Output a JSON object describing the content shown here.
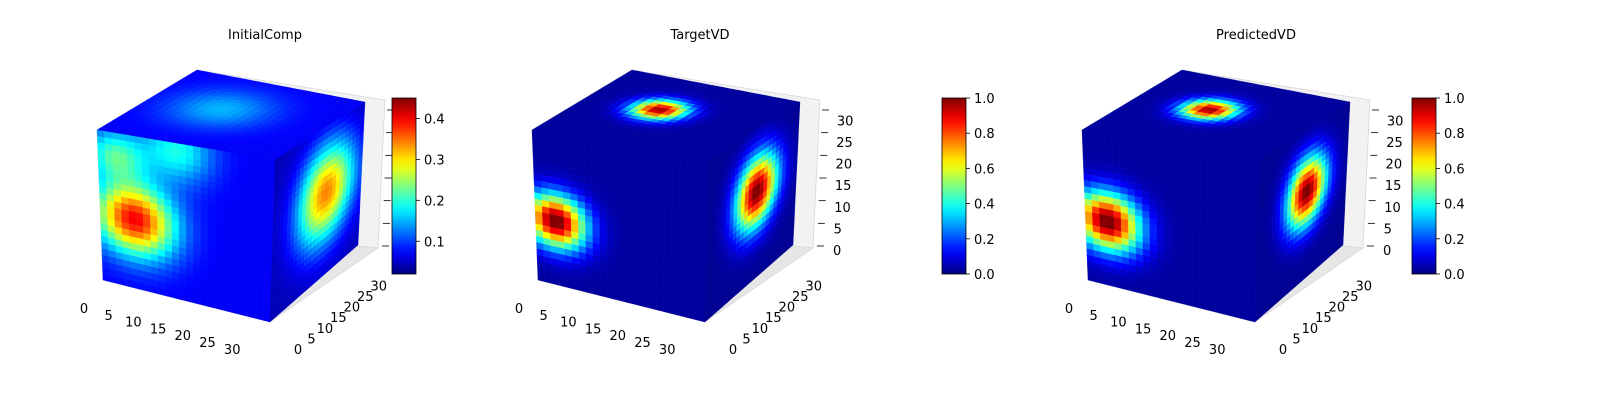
{
  "chart_data": [
    {
      "type": "heatmap",
      "subtype": "3d-voxel",
      "title": "InitialComp",
      "colormap": "jet",
      "grid_size": [
        32,
        32,
        32
      ],
      "axis_ticks": {
        "x": [
          "0",
          "5",
          "10",
          "15",
          "20",
          "25",
          "30"
        ],
        "y": [
          "0",
          "5",
          "10",
          "15",
          "20",
          "25",
          "30"
        ],
        "z": []
      },
      "colorbar": {
        "ticks": [
          "0.1",
          "0.2",
          "0.3",
          "0.4"
        ],
        "range": [
          0.02,
          0.45
        ]
      },
      "hotspots": [
        {
          "face": "front",
          "u": 0.2,
          "v": 0.55,
          "intensity": 0.33,
          "sigma": 0.16,
          "note": "left-face blob"
        },
        {
          "face": "front",
          "u": 0.1,
          "v": 0.15,
          "intensity": 0.14,
          "sigma": 0.12
        },
        {
          "face": "front",
          "u": 0.45,
          "v": 0.05,
          "intensity": 0.12,
          "sigma": 0.14
        },
        {
          "face": "side",
          "u": 0.6,
          "v": 0.45,
          "intensity": 0.3,
          "sigma": 0.22
        },
        {
          "face": "top",
          "u": 0.4,
          "v": 0.45,
          "intensity": 0.08,
          "sigma": 0.2
        }
      ]
    },
    {
      "type": "heatmap",
      "subtype": "3d-voxel",
      "title": "TargetVD",
      "colormap": "jet",
      "grid_size": [
        32,
        32,
        32
      ],
      "axis_ticks": {
        "x": [
          "0",
          "5",
          "10",
          "15",
          "20",
          "25",
          "30"
        ],
        "y": [
          "0",
          "5",
          "10",
          "15",
          "20",
          "25",
          "30"
        ],
        "z": [
          "0",
          "5",
          "10",
          "15",
          "20",
          "25",
          "30"
        ]
      },
      "colorbar": {
        "ticks": [
          "0.0",
          "0.2",
          "0.4",
          "0.6",
          "0.8",
          "1.0"
        ],
        "range": [
          0.0,
          1.0
        ]
      },
      "hotspots": [
        {
          "face": "front",
          "u": 0.12,
          "v": 0.58,
          "intensity": 1.0,
          "sigma": 0.12
        },
        {
          "face": "side",
          "u": 0.55,
          "v": 0.42,
          "intensity": 1.0,
          "sigma": 0.16
        },
        {
          "face": "top",
          "u": 0.42,
          "v": 0.45,
          "intensity": 0.95,
          "sigma": 0.1
        }
      ]
    },
    {
      "type": "heatmap",
      "subtype": "3d-voxel",
      "title": "PredictedVD",
      "colormap": "jet",
      "grid_size": [
        32,
        32,
        32
      ],
      "axis_ticks": {
        "x": [
          "0",
          "5",
          "10",
          "15",
          "20",
          "25",
          "30"
        ],
        "y": [
          "0",
          "5",
          "10",
          "15",
          "20",
          "25",
          "30"
        ],
        "z": [
          "0",
          "5",
          "10",
          "15",
          "20",
          "25",
          "30"
        ]
      },
      "colorbar": {
        "ticks": [
          "0.0",
          "0.2",
          "0.4",
          "0.6",
          "0.8",
          "1.0"
        ],
        "range": [
          0.0,
          1.0
        ]
      },
      "hotspots": [
        {
          "face": "front",
          "u": 0.13,
          "v": 0.58,
          "intensity": 1.0,
          "sigma": 0.13
        },
        {
          "face": "side",
          "u": 0.55,
          "v": 0.42,
          "intensity": 1.0,
          "sigma": 0.15
        },
        {
          "face": "top",
          "u": 0.42,
          "v": 0.45,
          "intensity": 0.95,
          "sigma": 0.1
        }
      ]
    }
  ]
}
